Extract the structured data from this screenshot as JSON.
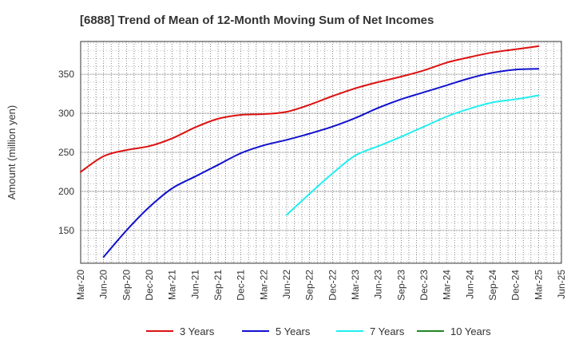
{
  "chart_data": {
    "type": "line",
    "title": "[6888]  Trend of Mean of 12-Month Moving Sum of Net Incomes",
    "ylabel": "Amount (million yen)",
    "xlabel": "",
    "ylim": [
      108,
      392
    ],
    "yticks": [
      150,
      200,
      250,
      300,
      350
    ],
    "x_ticks": [
      "Mar-20",
      "Jun-20",
      "Sep-20",
      "Dec-20",
      "Mar-21",
      "Jun-21",
      "Sep-21",
      "Dec-21",
      "Mar-22",
      "Jun-22",
      "Sep-22",
      "Dec-22",
      "Mar-23",
      "Jun-23",
      "Sep-23",
      "Dec-23",
      "Mar-24",
      "Jun-24",
      "Sep-24",
      "Dec-24",
      "Mar-25",
      "Jun-25"
    ],
    "grid": true,
    "legend_position": "bottom",
    "series": [
      {
        "name": "3 Years",
        "color": "#dd1111",
        "x": [
          "Mar-20",
          "Jun-20",
          "Sep-20",
          "Dec-20",
          "Mar-21",
          "Jun-21",
          "Sep-21",
          "Dec-21",
          "Mar-22",
          "Jun-22",
          "Sep-22",
          "Dec-22",
          "Mar-23",
          "Jun-23",
          "Sep-23",
          "Dec-23",
          "Mar-24",
          "Jun-24",
          "Sep-24",
          "Dec-24",
          "Mar-25"
        ],
        "values": [
          225,
          245,
          253,
          258,
          268,
          282,
          293,
          298,
          299,
          302,
          311,
          322,
          332,
          340,
          347,
          355,
          365,
          372,
          378,
          382,
          386
        ]
      },
      {
        "name": "5 Years",
        "color": "#1111cc",
        "x": [
          "Jun-20",
          "Sep-20",
          "Dec-20",
          "Mar-21",
          "Jun-21",
          "Sep-21",
          "Dec-21",
          "Mar-22",
          "Jun-22",
          "Sep-22",
          "Dec-22",
          "Mar-23",
          "Jun-23",
          "Sep-23",
          "Dec-23",
          "Mar-24",
          "Jun-24",
          "Sep-24",
          "Dec-24",
          "Mar-25"
        ],
        "values": [
          116,
          150,
          180,
          204,
          219,
          234,
          249,
          259,
          266,
          274,
          283,
          294,
          307,
          318,
          327,
          336,
          345,
          352,
          356,
          357
        ]
      },
      {
        "name": "7 Years",
        "color": "#22eeee",
        "x": [
          "Jun-22",
          "Sep-22",
          "Dec-22",
          "Mar-23",
          "Jun-23",
          "Sep-23",
          "Dec-23",
          "Mar-24",
          "Jun-24",
          "Sep-24",
          "Dec-24",
          "Mar-25"
        ],
        "values": [
          170,
          197,
          223,
          246,
          258,
          270,
          283,
          296,
          306,
          314,
          318,
          323
        ]
      },
      {
        "name": "10 Years",
        "color": "#228822",
        "x": [],
        "values": []
      }
    ]
  }
}
